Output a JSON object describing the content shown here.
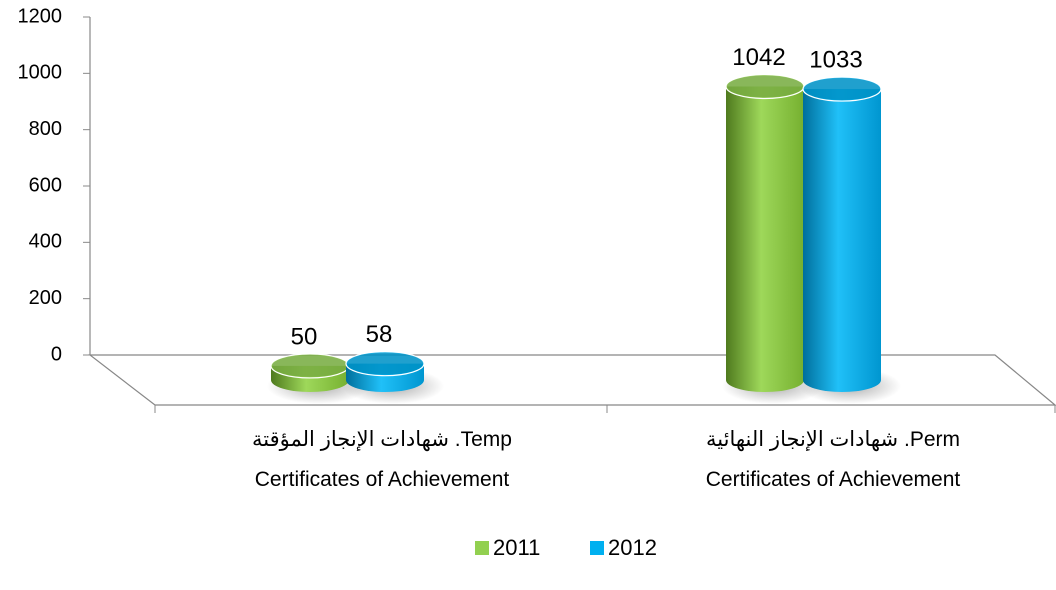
{
  "chart_data": {
    "type": "bar3d",
    "categories": [
      "Temp. شهادات الإنجاز المؤقتة\nCertificates of Achievement",
      "Perm. شهادات الإنجاز النهائية\nCertificates of Achievement"
    ],
    "series": [
      {
        "name": "2011",
        "color": "#92d050",
        "values": [
          50,
          1042
        ]
      },
      {
        "name": "2012",
        "color": "#00b0f0",
        "values": [
          58,
          1033
        ]
      }
    ],
    "ylim": [
      0,
      1200
    ],
    "yticks": [
      0,
      200,
      400,
      600,
      800,
      1000,
      1200
    ],
    "legend": "bottom"
  }
}
